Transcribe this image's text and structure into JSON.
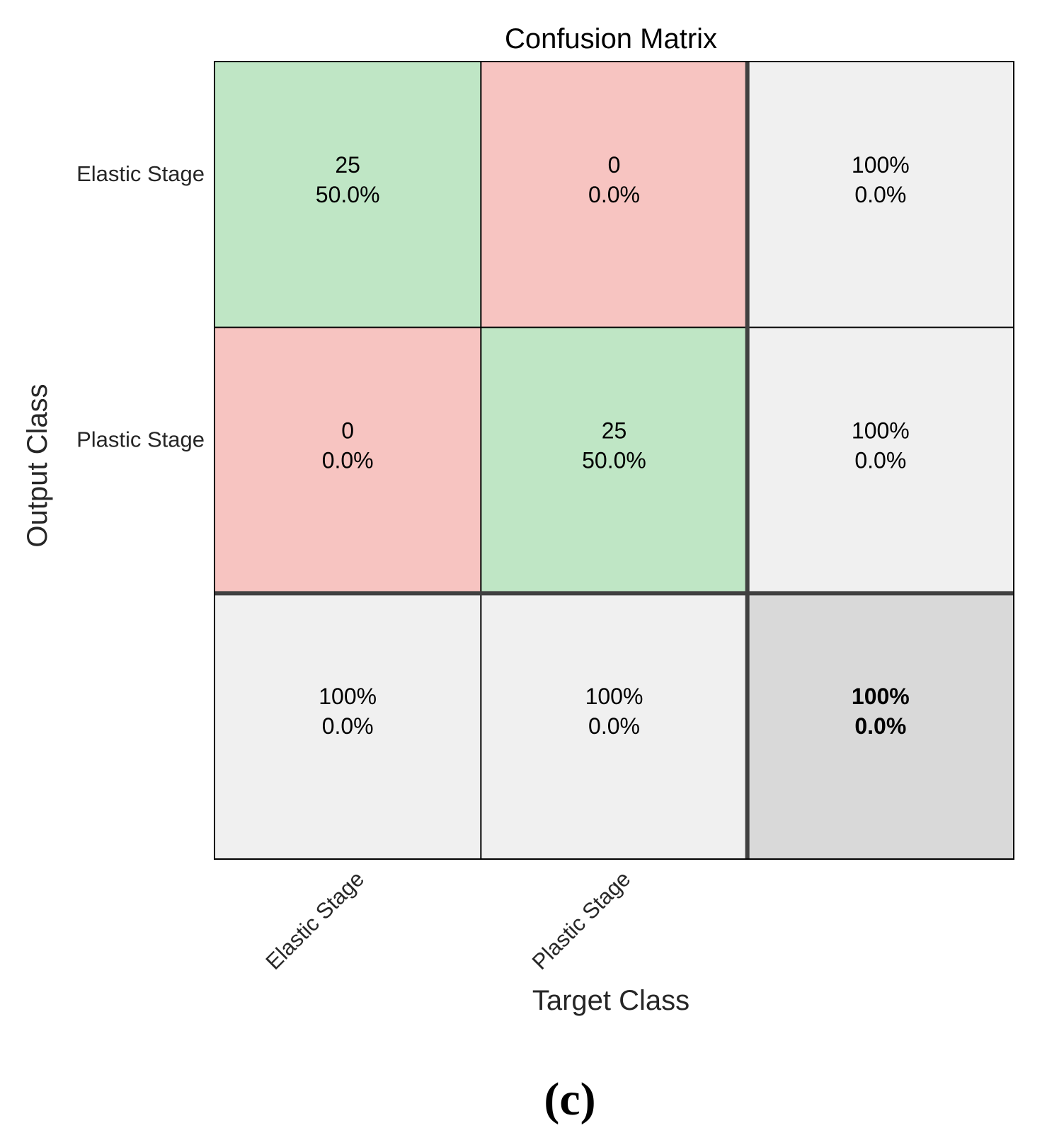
{
  "chart_data": {
    "type": "heatmap",
    "subtype": "confusion_matrix",
    "title": "Confusion Matrix",
    "xlabel": "Target Class",
    "ylabel": "Output Class",
    "classes": [
      "Elastic Stage",
      "Plastic Stage"
    ],
    "counts": [
      [
        25,
        0
      ],
      [
        0,
        25
      ]
    ],
    "percentages": [
      [
        "50.0%",
        "0.0%"
      ],
      [
        "0.0%",
        "50.0%"
      ]
    ],
    "row_summary": [
      {
        "correct": "100%",
        "incorrect": "0.0%"
      },
      {
        "correct": "100%",
        "incorrect": "0.0%"
      }
    ],
    "column_summary": [
      {
        "correct": "100%",
        "incorrect": "0.0%"
      },
      {
        "correct": "100%",
        "incorrect": "0.0%"
      }
    ],
    "overall": {
      "correct": "100%",
      "incorrect": "0.0%"
    }
  },
  "colors": {
    "correct_cell": "#bfe6c5",
    "incorrect_cell": "#f7c4c1",
    "summary_cell": "#f0f0f0",
    "overall_cell": "#d9d9d9",
    "correct_text": "#2db34a",
    "incorrect_text": "#e03a2e",
    "cell_text": "#000000",
    "grid_line": "#000000",
    "thick_line": "#404040"
  },
  "panel_label": "(c)"
}
